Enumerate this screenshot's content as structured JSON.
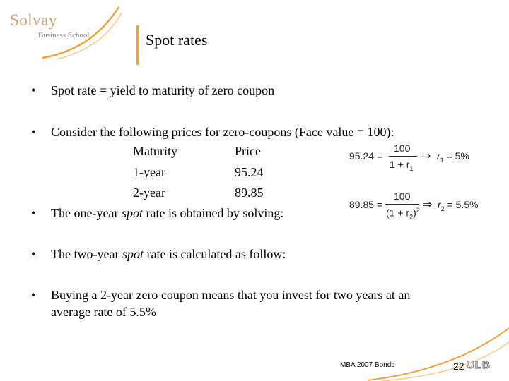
{
  "logo": {
    "name": "Solvay",
    "subtitle": "Business School"
  },
  "slide": {
    "title": "Spot rates",
    "bullets": [
      "Spot rate = yield to maturity of zero coupon",
      "Consider the following prices for zero-coupons (Face value = 100):",
      "The one-year",
      "spot",
      "rate is obtained by solving:",
      "The two-year",
      "spot",
      "rate is calculated as follow:",
      "Buying a 2-year zero coupon means that you invest for two years at an",
      "average rate of 5.5%"
    ],
    "table": {
      "headers": [
        "Maturity",
        "Price"
      ],
      "rows": [
        [
          "1-year",
          "95.24"
        ],
        [
          "2-year",
          "89.85"
        ]
      ]
    },
    "equations": {
      "eq1": {
        "lhs": "95.24 =",
        "num": "100",
        "den": "1 + r",
        "sub": "1",
        "result": "r",
        "res_sub": "1",
        "res_val": "= 5%"
      },
      "eq2": {
        "lhs": "89.85 =",
        "num": "100",
        "den": "(1 + r",
        "den_sub": "2",
        "den_close": ")",
        "den_sup": "2",
        "result": "r",
        "res_sub": "2",
        "res_val": "= 5.5%"
      },
      "arrow": "⇒"
    },
    "bullet_char": "•"
  },
  "footer": {
    "text": "MBA 2007 Bonds",
    "page": "22",
    "logo": "ULB"
  },
  "colors": {
    "accent": "#f0a23a",
    "logo_gold": "#c9a37a"
  }
}
